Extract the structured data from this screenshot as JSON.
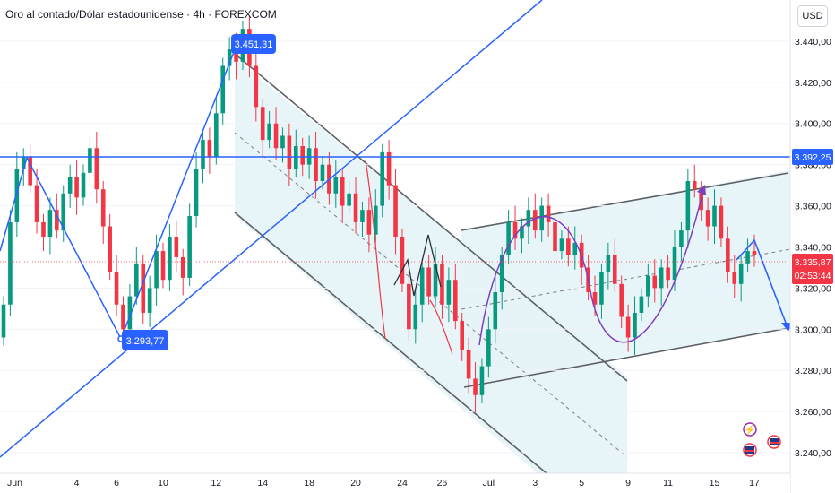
{
  "header": {
    "symbol_title": "Oro al contado/Dólar estadounidense · 4h · FOREXCOM",
    "currency": "USD"
  },
  "chart_data": {
    "type": "candlestick",
    "y_axis": {
      "labels": [
        "3.440,00",
        "3.420,00",
        "3.400,00",
        "3.380,00",
        "3.360,00",
        "3.340,00",
        "3.320,00",
        "3.300,00",
        "3.280,00",
        "3.260,00",
        "3.240,00"
      ],
      "min": 3230,
      "max": 3460
    },
    "x_axis": {
      "labels": [
        "Jun",
        "4",
        "6",
        "10",
        "12",
        "14",
        "18",
        "20",
        "24",
        "26",
        "Jul",
        "3",
        "5",
        "9",
        "11",
        "15",
        "17"
      ]
    },
    "price_tags": [
      {
        "label": "3.392,25",
        "value": 3392.25,
        "color": "#2962ff"
      },
      {
        "label": "3.335,87",
        "value": 3335.87,
        "color": "#f23645"
      },
      {
        "label": "02:53:44",
        "value": 3327,
        "color": "#f23645"
      }
    ],
    "annotations": [
      {
        "label": "3.451,31",
        "value": 3451.31
      },
      {
        "label": "3.293,77",
        "value": 3293.77
      }
    ],
    "series": [
      {
        "date": "Jun",
        "open": 3296,
        "close": 3312
      },
      {
        "date": "Jun",
        "open": 3312,
        "close": 3352
      },
      {
        "date": "Jun",
        "open": 3352,
        "close": 3378
      },
      {
        "date": "Jun",
        "open": 3378,
        "close": 3384
      },
      {
        "date": "Jun",
        "open": 3384,
        "close": 3370
      },
      {
        "date": "Jun",
        "open": 3370,
        "close": 3352
      },
      {
        "date": "Jun",
        "open": 3352,
        "close": 3345
      },
      {
        "date": "Jun",
        "open": 3345,
        "close": 3358
      },
      {
        "date": "Jun",
        "open": 3358,
        "close": 3348
      },
      {
        "date": "4",
        "open": 3348,
        "close": 3366
      },
      {
        "date": "4",
        "open": 3366,
        "close": 3374
      },
      {
        "date": "4",
        "open": 3374,
        "close": 3364
      },
      {
        "date": "4",
        "open": 3364,
        "close": 3376
      },
      {
        "date": "4",
        "open": 3376,
        "close": 3388
      },
      {
        "date": "4",
        "open": 3388,
        "close": 3368
      },
      {
        "date": "6",
        "open": 3368,
        "close": 3350
      },
      {
        "date": "6",
        "open": 3350,
        "close": 3328
      },
      {
        "date": "6",
        "open": 3328,
        "close": 3312
      },
      {
        "date": "6",
        "open": 3312,
        "close": 3300
      },
      {
        "date": "6",
        "open": 3300,
        "close": 3316
      },
      {
        "date": "6",
        "open": 3316,
        "close": 3332
      },
      {
        "date": "6",
        "open": 3332,
        "close": 3308
      },
      {
        "date": "10",
        "open": 3308,
        "close": 3320
      },
      {
        "date": "10",
        "open": 3320,
        "close": 3338
      },
      {
        "date": "10",
        "open": 3338,
        "close": 3324
      },
      {
        "date": "10",
        "open": 3324,
        "close": 3345
      },
      {
        "date": "10",
        "open": 3345,
        "close": 3335
      },
      {
        "date": "10",
        "open": 3335,
        "close": 3325
      },
      {
        "date": "10",
        "open": 3325,
        "close": 3355
      },
      {
        "date": "10",
        "open": 3355,
        "close": 3378
      },
      {
        "date": "12",
        "open": 3378,
        "close": 3392
      },
      {
        "date": "12",
        "open": 3392,
        "close": 3384
      },
      {
        "date": "12",
        "open": 3384,
        "close": 3405
      },
      {
        "date": "12",
        "open": 3405,
        "close": 3428
      },
      {
        "date": "12",
        "open": 3428,
        "close": 3436
      },
      {
        "date": "12",
        "open": 3436,
        "close": 3430
      },
      {
        "date": "12",
        "open": 3430,
        "close": 3446
      },
      {
        "date": "14",
        "open": 3446,
        "close": 3428
      },
      {
        "date": "14",
        "open": 3428,
        "close": 3408
      },
      {
        "date": "14",
        "open": 3408,
        "close": 3392
      },
      {
        "date": "14",
        "open": 3392,
        "close": 3400
      },
      {
        "date": "14",
        "open": 3400,
        "close": 3388
      },
      {
        "date": "14",
        "open": 3388,
        "close": 3394
      },
      {
        "date": "14",
        "open": 3394,
        "close": 3378
      },
      {
        "date": "18",
        "open": 3378,
        "close": 3389
      },
      {
        "date": "18",
        "open": 3389,
        "close": 3380
      },
      {
        "date": "18",
        "open": 3380,
        "close": 3388
      },
      {
        "date": "18",
        "open": 3388,
        "close": 3372
      },
      {
        "date": "18",
        "open": 3372,
        "close": 3380
      },
      {
        "date": "18",
        "open": 3380,
        "close": 3366
      },
      {
        "date": "18",
        "open": 3366,
        "close": 3374
      },
      {
        "date": "20",
        "open": 3374,
        "close": 3360
      },
      {
        "date": "20",
        "open": 3360,
        "close": 3366
      },
      {
        "date": "20",
        "open": 3366,
        "close": 3352
      },
      {
        "date": "20",
        "open": 3352,
        "close": 3358
      },
      {
        "date": "20",
        "open": 3358,
        "close": 3346
      },
      {
        "date": "20",
        "open": 3346,
        "close": 3360
      },
      {
        "date": "20",
        "open": 3360,
        "close": 3386
      },
      {
        "date": "24",
        "open": 3386,
        "close": 3370
      },
      {
        "date": "24",
        "open": 3370,
        "close": 3345
      },
      {
        "date": "24",
        "open": 3345,
        "close": 3322
      },
      {
        "date": "24",
        "open": 3322,
        "close": 3300
      },
      {
        "date": "24",
        "open": 3300,
        "close": 3312
      },
      {
        "date": "24",
        "open": 3312,
        "close": 3330
      },
      {
        "date": "26",
        "open": 3330,
        "close": 3316
      },
      {
        "date": "26",
        "open": 3316,
        "close": 3332
      },
      {
        "date": "26",
        "open": 3332,
        "close": 3312
      },
      {
        "date": "26",
        "open": 3312,
        "close": 3324
      },
      {
        "date": "26",
        "open": 3324,
        "close": 3304
      },
      {
        "date": "26",
        "open": 3304,
        "close": 3290
      },
      {
        "date": "26",
        "open": 3290,
        "close": 3276
      },
      {
        "date": "Jul",
        "open": 3276,
        "close": 3268
      },
      {
        "date": "Jul",
        "open": 3268,
        "close": 3282
      },
      {
        "date": "Jul",
        "open": 3282,
        "close": 3300
      },
      {
        "date": "Jul",
        "open": 3300,
        "close": 3318
      },
      {
        "date": "Jul",
        "open": 3318,
        "close": 3336
      },
      {
        "date": "Jul",
        "open": 3336,
        "close": 3352
      },
      {
        "date": "Jul",
        "open": 3352,
        "close": 3344
      },
      {
        "date": "3",
        "open": 3344,
        "close": 3350
      },
      {
        "date": "3",
        "open": 3350,
        "close": 3358
      },
      {
        "date": "3",
        "open": 3358,
        "close": 3348
      },
      {
        "date": "3",
        "open": 3348,
        "close": 3360
      },
      {
        "date": "3",
        "open": 3360,
        "close": 3352
      },
      {
        "date": "3",
        "open": 3352,
        "close": 3338
      },
      {
        "date": "3",
        "open": 3338,
        "close": 3344
      },
      {
        "date": "5",
        "open": 3344,
        "close": 3336
      },
      {
        "date": "5",
        "open": 3336,
        "close": 3342
      },
      {
        "date": "5",
        "open": 3342,
        "close": 3330
      },
      {
        "date": "5",
        "open": 3330,
        "close": 3318
      },
      {
        "date": "5",
        "open": 3318,
        "close": 3312
      },
      {
        "date": "5",
        "open": 3312,
        "close": 3328
      },
      {
        "date": "5",
        "open": 3328,
        "close": 3336
      },
      {
        "date": "9",
        "open": 3336,
        "close": 3322
      },
      {
        "date": "9",
        "open": 3322,
        "close": 3306
      },
      {
        "date": "9",
        "open": 3306,
        "close": 3296
      },
      {
        "date": "9",
        "open": 3296,
        "close": 3308
      },
      {
        "date": "9",
        "open": 3308,
        "close": 3316
      },
      {
        "date": "9",
        "open": 3316,
        "close": 3326
      },
      {
        "date": "11",
        "open": 3326,
        "close": 3320
      },
      {
        "date": "11",
        "open": 3320,
        "close": 3330
      },
      {
        "date": "11",
        "open": 3330,
        "close": 3324
      },
      {
        "date": "11",
        "open": 3324,
        "close": 3340
      },
      {
        "date": "11",
        "open": 3340,
        "close": 3348
      },
      {
        "date": "11",
        "open": 3348,
        "close": 3372
      },
      {
        "date": "11",
        "open": 3372,
        "close": 3368
      },
      {
        "date": "15",
        "open": 3368,
        "close": 3358
      },
      {
        "date": "15",
        "open": 3358,
        "close": 3350
      },
      {
        "date": "15",
        "open": 3350,
        "close": 3360
      },
      {
        "date": "15",
        "open": 3360,
        "close": 3344
      },
      {
        "date": "15",
        "open": 3344,
        "close": 3328
      },
      {
        "date": "15",
        "open": 3328,
        "close": 3322
      },
      {
        "date": "17",
        "open": 3322,
        "close": 3332
      },
      {
        "date": "17",
        "open": 3332,
        "close": 3338
      },
      {
        "date": "17",
        "open": 3338,
        "close": 3335.87
      }
    ]
  }
}
